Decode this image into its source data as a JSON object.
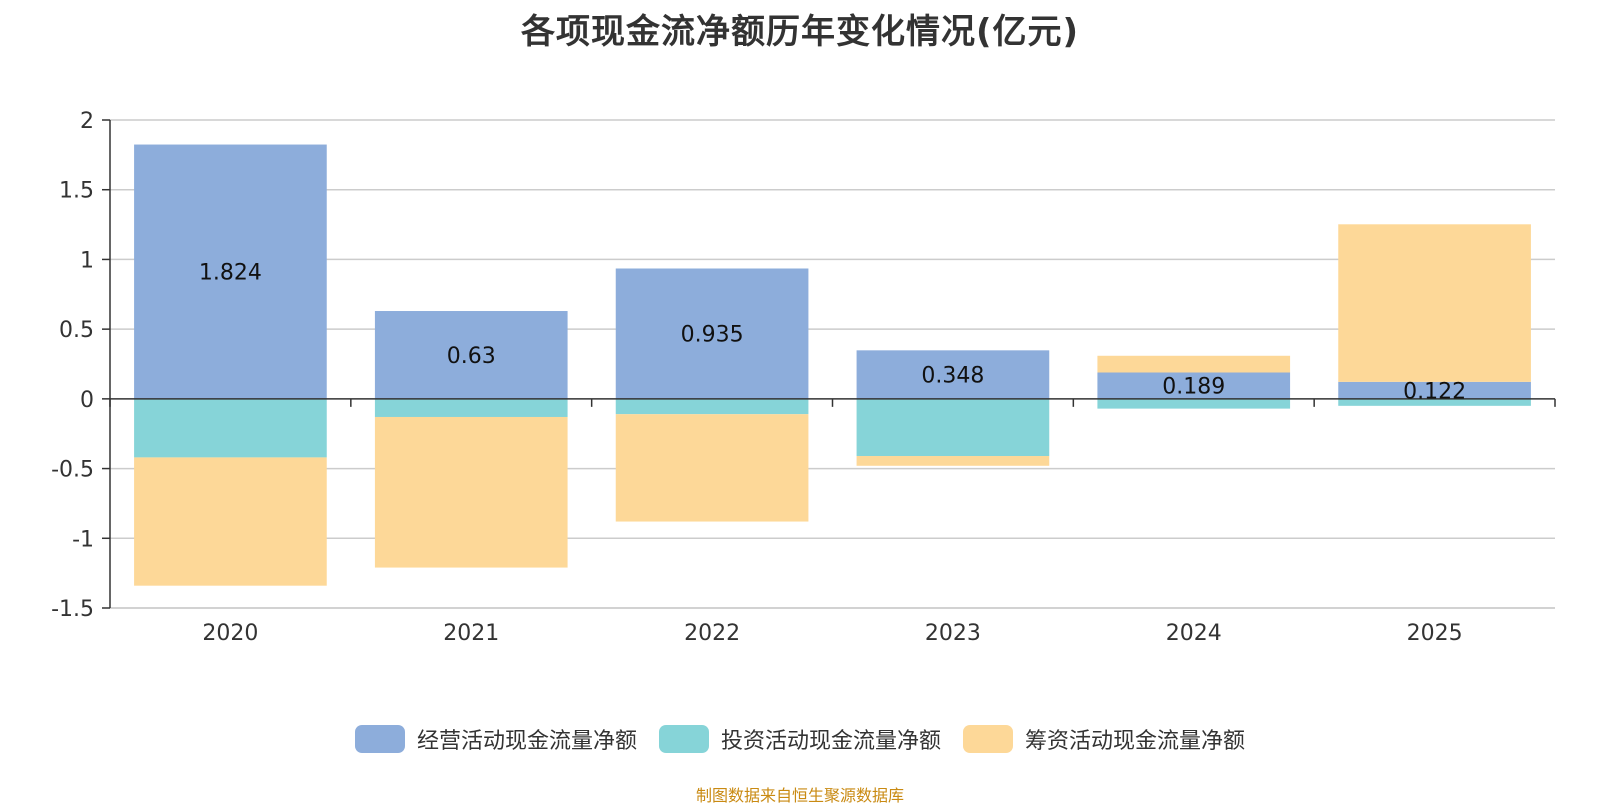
{
  "chart_data": {
    "type": "bar",
    "stacked": true,
    "title": "各项现金流净额历年变化情况(亿元)",
    "categories": [
      "2020",
      "2021",
      "2022",
      "2023",
      "2024",
      "2025"
    ],
    "ylim": [
      -1.5,
      2
    ],
    "yticks": [
      2,
      1.5,
      1,
      0.5,
      0,
      -0.5,
      -1,
      -1.5
    ],
    "ytick_labels": [
      "2",
      "1.5",
      "1",
      "0.5",
      "0",
      "-0.5",
      "-1",
      "-1.5"
    ],
    "grid": true,
    "legend_position": "bottom-center",
    "series": [
      {
        "name": "经营活动现金流量净额",
        "color": "#8daddb",
        "values": [
          1.824,
          0.63,
          0.935,
          0.348,
          0.189,
          0.122
        ],
        "labels": [
          "1.824",
          "0.63",
          "0.935",
          "0.348",
          "0.189",
          "0.122"
        ]
      },
      {
        "name": "投资活动现金流量净额",
        "color": "#86d4d8",
        "values": [
          -0.42,
          -0.13,
          -0.11,
          -0.41,
          -0.07,
          -0.05
        ]
      },
      {
        "name": "筹资活动现金流量净额",
        "color": "#fdd898",
        "values": [
          -0.92,
          -1.08,
          -0.77,
          -0.07,
          0.12,
          1.13
        ]
      }
    ]
  },
  "footer": {
    "source": "制图数据来自恒生聚源数据库"
  }
}
